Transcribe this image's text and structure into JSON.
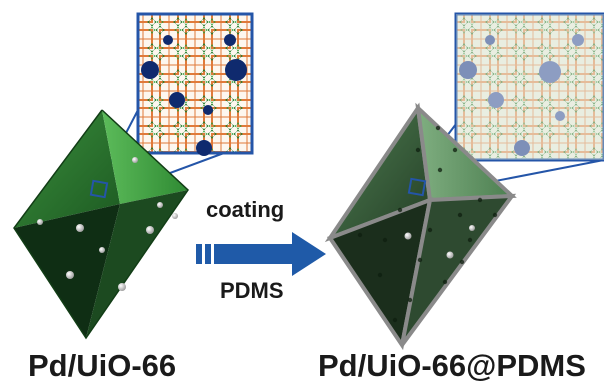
{
  "figure": {
    "left_label": "Pd/UiO-66",
    "right_label": "Pd/UiO-66@PDMS",
    "process_top": "coating",
    "process_bottom": "PDMS"
  },
  "colors": {
    "octahedron_left_light": "#4caa4c",
    "octahedron_left_dark": "#0d3a13",
    "octahedron_right_light": "#6f9d72",
    "octahedron_right_dark": "#1b2e1c",
    "inset_border": "#2455a8",
    "arrow": "#1f5aa8",
    "linker": "#e07a3a",
    "cluster": "#1f7a2a",
    "pd_particle": "#0f2a6e"
  },
  "icons": [
    "octahedron-crystal-icon",
    "right-arrow-icon",
    "pore-zoom-inset-icon"
  ]
}
